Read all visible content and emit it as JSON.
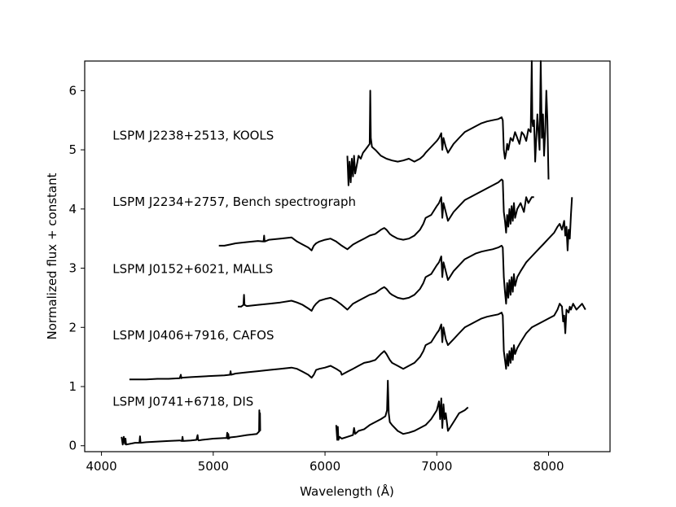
{
  "chart_data": {
    "type": "line",
    "title": "",
    "xlabel": "Wavelength (Å)",
    "ylabel": "Normalized flux + constant",
    "xlim": [
      3850,
      8550
    ],
    "ylim": [
      -0.1,
      6.5
    ],
    "x_ticks": [
      4000,
      5000,
      6000,
      7000,
      8000
    ],
    "y_ticks": [
      0,
      1,
      2,
      3,
      4,
      5,
      6
    ],
    "grid": false,
    "legend": "none",
    "line_color": "#000000",
    "series": [
      {
        "name": "LSPM J0741+6718, DIS",
        "label_x": 4100,
        "label_y": 0.68,
        "segments": [
          {
            "x": [
              4180,
              4190,
              4200,
              4210,
              4215,
              4220,
              4300,
              4340,
              4345,
              4350,
              4400,
              4500,
              4600,
              4700,
              4720,
              4725,
              4730,
              4800,
              4850,
              4860,
              4865,
              4870,
              4900,
              5000,
              5100,
              5120,
              5125,
              5130,
              5135,
              5140,
              5150,
              5200,
              5300,
              5390,
              5400,
              5410,
              5412,
              5415,
              5418,
              5420
            ],
            "y": [
              0.15,
              0.02,
              0.15,
              0.03,
              0.12,
              0.02,
              0.05,
              0.05,
              0.16,
              0.05,
              0.06,
              0.07,
              0.08,
              0.09,
              0.08,
              0.15,
              0.08,
              0.09,
              0.1,
              0.18,
              0.1,
              0.09,
              0.1,
              0.12,
              0.13,
              0.13,
              0.22,
              0.12,
              0.2,
              0.12,
              0.14,
              0.15,
              0.18,
              0.2,
              0.22,
              0.24,
              0.6,
              0.25,
              0.55,
              0.25
            ]
          },
          {
            "x": [
              6100,
              6110,
              6115,
              6120,
              6130,
              6150,
              6200,
              6250,
              6260,
              6270,
              6300,
              6350,
              6400,
              6450,
              6500,
              6540,
              6555,
              6562,
              6570,
              6580,
              6600,
              6650,
              6700,
              6750,
              6800,
              6850,
              6900,
              6950,
              7000,
              7020,
              7030,
              7040,
              7050,
              7060,
              7070,
              7080,
              7100,
              7150,
              7200,
              7250,
              7280
            ],
            "y": [
              0.35,
              0.1,
              0.32,
              0.1,
              0.15,
              0.12,
              0.15,
              0.18,
              0.3,
              0.2,
              0.25,
              0.28,
              0.35,
              0.4,
              0.45,
              0.5,
              0.6,
              1.1,
              0.55,
              0.4,
              0.35,
              0.25,
              0.2,
              0.22,
              0.25,
              0.3,
              0.35,
              0.45,
              0.6,
              0.75,
              0.45,
              0.8,
              0.3,
              0.7,
              0.45,
              0.55,
              0.25,
              0.4,
              0.55,
              0.6,
              0.65
            ]
          }
        ]
      },
      {
        "name": "LSPM J0406+7916, CAFOS",
        "label_x": 4100,
        "label_y": 1.8,
        "segments": [
          {
            "x": [
              4250,
              4400,
              4500,
              4600,
              4700,
              4710,
              4715,
              4720,
              4800,
              4900,
              5000,
              5100,
              5150,
              5155,
              5160,
              5200,
              5300,
              5400,
              5500,
              5600,
              5700,
              5750,
              5800,
              5850,
              5880,
              5900,
              5920,
              5950,
              6000,
              6050,
              6100,
              6140,
              6150,
              6200,
              6250,
              6300,
              6350,
              6400,
              6450,
              6500,
              6530,
              6550,
              6580,
              6600,
              6650,
              6700,
              6750,
              6800,
              6850,
              6880,
              6900,
              6950,
              7000,
              7020,
              7040,
              7050,
              7060,
              7080,
              7100,
              7150,
              7200,
              7250,
              7300,
              7350,
              7400,
              7450,
              7500,
              7550,
              7580,
              7590,
              7600,
              7610,
              7620,
              7630,
              7640,
              7650,
              7660,
              7670,
              7680,
              7690,
              7700,
              7720,
              7750,
              7800,
              7850,
              7900,
              7950,
              8000,
              8050,
              8080,
              8100,
              8120,
              8130,
              8140,
              8150,
              8160,
              8180,
              8190,
              8200,
              8220,
              8250,
              8300,
              8330
            ],
            "y": [
              1.12,
              1.12,
              1.13,
              1.13,
              1.14,
              1.2,
              1.14,
              1.15,
              1.16,
              1.17,
              1.18,
              1.19,
              1.2,
              1.26,
              1.2,
              1.22,
              1.24,
              1.26,
              1.28,
              1.3,
              1.32,
              1.3,
              1.25,
              1.2,
              1.15,
              1.2,
              1.28,
              1.3,
              1.32,
              1.35,
              1.3,
              1.25,
              1.2,
              1.25,
              1.3,
              1.35,
              1.4,
              1.42,
              1.45,
              1.55,
              1.6,
              1.55,
              1.45,
              1.4,
              1.35,
              1.3,
              1.35,
              1.4,
              1.5,
              1.6,
              1.7,
              1.75,
              1.9,
              1.95,
              2.05,
              1.75,
              2.0,
              1.8,
              1.7,
              1.8,
              1.9,
              2.0,
              2.05,
              2.1,
              2.15,
              2.18,
              2.2,
              2.22,
              2.25,
              2.2,
              1.6,
              1.45,
              1.3,
              1.55,
              1.35,
              1.6,
              1.4,
              1.65,
              1.45,
              1.7,
              1.55,
              1.65,
              1.75,
              1.9,
              2.0,
              2.05,
              2.1,
              2.15,
              2.2,
              2.3,
              2.4,
              2.35,
              2.1,
              2.2,
              1.9,
              2.3,
              2.25,
              2.35,
              2.3,
              2.4,
              2.3,
              2.4,
              2.3
            ]
          }
        ]
      },
      {
        "name": "LSPM J0152+6021, MALLS",
        "label_x": 4100,
        "label_y": 2.92,
        "segments": [
          {
            "x": [
              5220,
              5250,
              5270,
              5275,
              5280,
              5300,
              5400,
              5500,
              5600,
              5700,
              5750,
              5800,
              5850,
              5880,
              5900,
              5920,
              5950,
              6000,
              6050,
              6100,
              6150,
              6200,
              6250,
              6300,
              6350,
              6400,
              6450,
              6500,
              6530,
              6550,
              6580,
              6600,
              6650,
              6700,
              6750,
              6800,
              6850,
              6880,
              6900,
              6950,
              7000,
              7020,
              7040,
              7050,
              7060,
              7080,
              7100,
              7150,
              7200,
              7250,
              7300,
              7350,
              7400,
              7450,
              7500,
              7550,
              7580,
              7590,
              7600,
              7610,
              7620,
              7630,
              7640,
              7650,
              7660,
              7670,
              7680,
              7690,
              7700,
              7720,
              7750,
              7800,
              7850,
              7900,
              7950,
              8000,
              8050,
              8080,
              8100,
              8120,
              8140,
              8150,
              8160,
              8170,
              8180,
              8190,
              8200,
              8210
            ],
            "y": [
              2.35,
              2.35,
              2.38,
              2.55,
              2.38,
              2.36,
              2.38,
              2.4,
              2.42,
              2.45,
              2.42,
              2.38,
              2.32,
              2.28,
              2.35,
              2.4,
              2.45,
              2.48,
              2.5,
              2.45,
              2.38,
              2.3,
              2.4,
              2.45,
              2.5,
              2.55,
              2.58,
              2.65,
              2.68,
              2.65,
              2.58,
              2.55,
              2.5,
              2.48,
              2.5,
              2.55,
              2.65,
              2.75,
              2.85,
              2.9,
              3.05,
              3.1,
              3.2,
              2.85,
              3.1,
              2.95,
              2.8,
              2.95,
              3.05,
              3.15,
              3.2,
              3.25,
              3.28,
              3.3,
              3.32,
              3.35,
              3.38,
              3.35,
              2.85,
              2.6,
              2.4,
              2.75,
              2.5,
              2.8,
              2.55,
              2.85,
              2.6,
              2.9,
              2.7,
              2.85,
              2.95,
              3.1,
              3.2,
              3.3,
              3.4,
              3.5,
              3.6,
              3.7,
              3.75,
              3.65,
              3.8,
              3.55,
              3.7,
              3.3,
              3.65,
              3.5,
              3.9,
              4.2
            ]
          }
        ]
      },
      {
        "name": "LSPM J2234+2757, Bench spectrograph",
        "label_x": 4100,
        "label_y": 4.05,
        "segments": [
          {
            "x": [
              5050,
              5100,
              5150,
              5200,
              5300,
              5400,
              5450,
              5455,
              5460,
              5500,
              5600,
              5700,
              5750,
              5800,
              5850,
              5880,
              5900,
              5920,
              5950,
              6000,
              6050,
              6100,
              6150,
              6200,
              6250,
              6300,
              6350,
              6400,
              6450,
              6500,
              6530,
              6550,
              6580,
              6600,
              6650,
              6700,
              6750,
              6800,
              6850,
              6880,
              6900,
              6950,
              7000,
              7020,
              7040,
              7050,
              7060,
              7080,
              7100,
              7150,
              7200,
              7250,
              7300,
              7350,
              7400,
              7450,
              7500,
              7550,
              7580,
              7590,
              7600,
              7610,
              7620,
              7630,
              7640,
              7650,
              7660,
              7670,
              7680,
              7690,
              7700,
              7720,
              7750,
              7780,
              7800,
              7820,
              7850,
              7870
            ],
            "y": [
              3.38,
              3.38,
              3.4,
              3.42,
              3.44,
              3.46,
              3.45,
              3.55,
              3.45,
              3.48,
              3.5,
              3.52,
              3.45,
              3.4,
              3.35,
              3.3,
              3.38,
              3.42,
              3.45,
              3.48,
              3.5,
              3.45,
              3.38,
              3.32,
              3.4,
              3.45,
              3.5,
              3.55,
              3.58,
              3.65,
              3.68,
              3.65,
              3.58,
              3.55,
              3.5,
              3.48,
              3.5,
              3.55,
              3.65,
              3.75,
              3.85,
              3.9,
              4.05,
              4.1,
              4.2,
              3.85,
              4.1,
              3.95,
              3.8,
              3.95,
              4.05,
              4.15,
              4.2,
              4.25,
              4.3,
              4.35,
              4.4,
              4.45,
              4.5,
              4.48,
              3.95,
              3.8,
              3.6,
              3.9,
              3.7,
              4.0,
              3.75,
              4.05,
              3.8,
              4.1,
              3.85,
              4.0,
              4.1,
              3.95,
              4.2,
              4.1,
              4.2,
              4.2
            ]
          }
        ]
      },
      {
        "name": "LSPM J2238+2513, KOOLS",
        "label_x": 4100,
        "label_y": 5.17,
        "segments": [
          {
            "x": [
              6200,
              6210,
              6220,
              6230,
              6240,
              6250,
              6260,
              6270,
              6280,
              6290,
              6300,
              6320,
              6340,
              6360,
              6380,
              6400,
              6405,
              6410,
              6420,
              6450,
              6500,
              6550,
              6600,
              6650,
              6700,
              6750,
              6800,
              6850,
              6880,
              6900,
              6950,
              7000,
              7020,
              7040,
              7050,
              7060,
              7080,
              7100,
              7150,
              7200,
              7250,
              7300,
              7350,
              7400,
              7450,
              7500,
              7550,
              7580,
              7590,
              7600,
              7610,
              7620,
              7630,
              7640,
              7660,
              7680,
              7700,
              7720,
              7740,
              7760,
              7780,
              7800,
              7820,
              7840,
              7850,
              7855,
              7860,
              7870,
              7880,
              7900,
              7920,
              7930,
              7940,
              7950,
              7960,
              7970,
              7980,
              7990,
              8000
            ],
            "y": [
              4.9,
              4.4,
              4.8,
              4.45,
              4.85,
              4.55,
              4.9,
              4.6,
              4.7,
              4.8,
              4.9,
              4.85,
              4.95,
              5.0,
              5.05,
              5.1,
              6.0,
              5.2,
              5.05,
              5.0,
              4.9,
              4.85,
              4.82,
              4.8,
              4.82,
              4.85,
              4.8,
              4.85,
              4.9,
              4.95,
              5.05,
              5.15,
              5.2,
              5.28,
              5.0,
              5.2,
              5.05,
              4.95,
              5.1,
              5.2,
              5.3,
              5.35,
              5.4,
              5.45,
              5.48,
              5.5,
              5.52,
              5.55,
              5.5,
              5.0,
              4.85,
              4.95,
              5.1,
              5.0,
              5.2,
              5.15,
              5.3,
              5.2,
              5.1,
              5.3,
              5.25,
              5.15,
              5.35,
              5.3,
              6.5,
              5.5,
              5.4,
              5.5,
              4.8,
              5.6,
              5.0,
              6.5,
              5.2,
              5.6,
              4.9,
              5.3,
              6.0,
              5.5,
              4.5
            ]
          }
        ]
      }
    ]
  }
}
